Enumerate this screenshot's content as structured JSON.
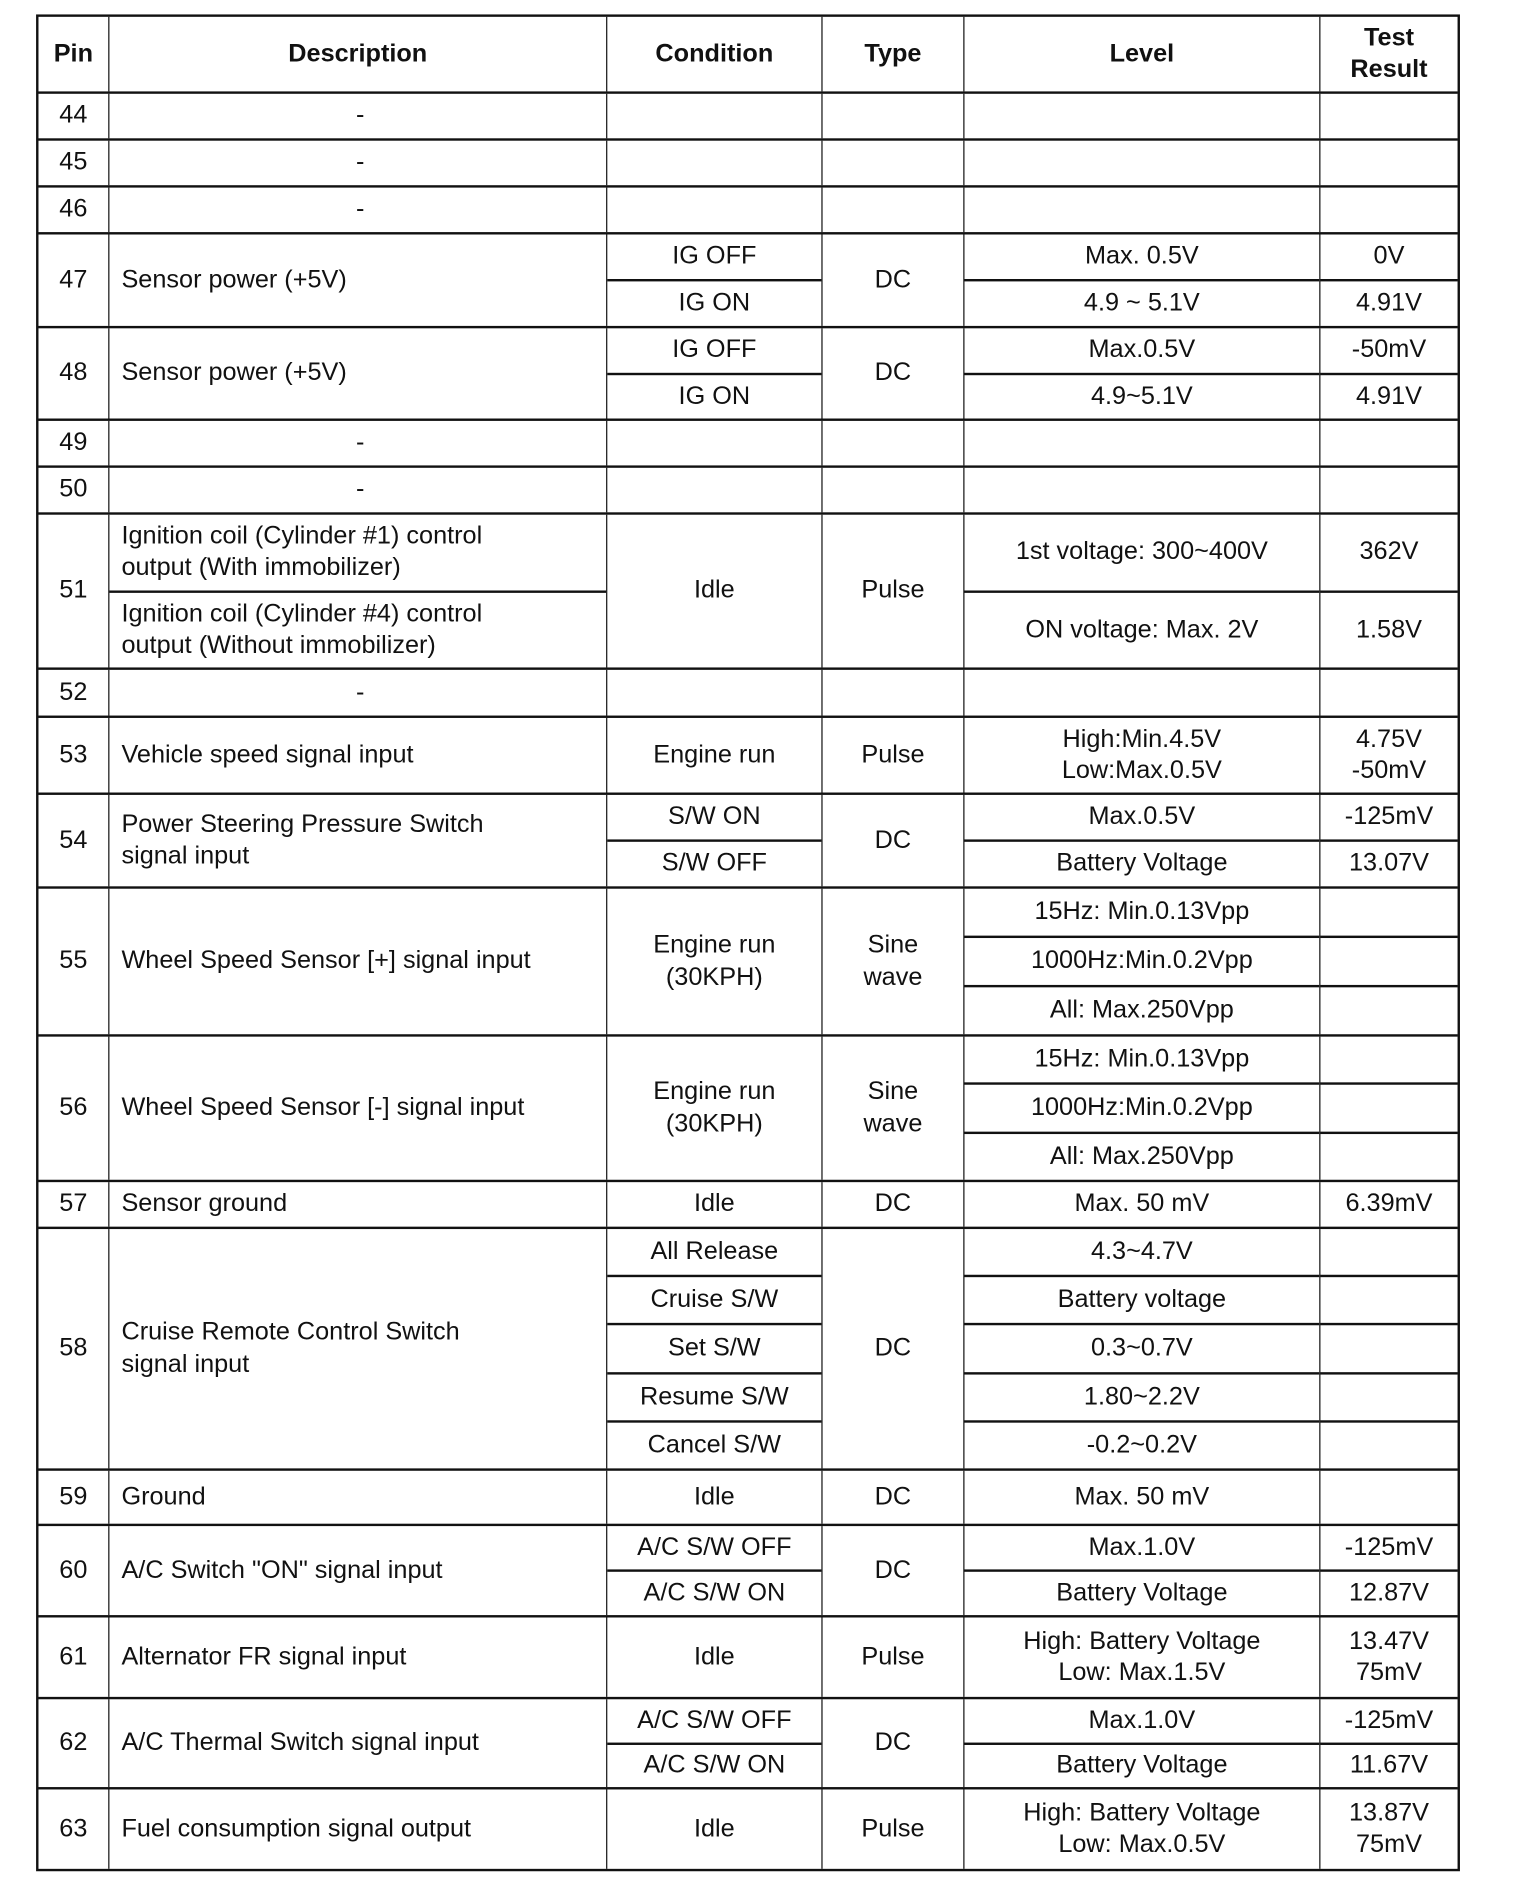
{
  "header": {
    "pin": "Pin",
    "description": "Description",
    "condition": "Condition",
    "type": "Type",
    "level": "Level",
    "result": "Test\nResult"
  },
  "rows": [
    {
      "pin": "44",
      "desc": [
        "-"
      ],
      "cond": [
        ""
      ],
      "type": "",
      "level": [
        ""
      ],
      "result": [
        ""
      ]
    },
    {
      "pin": "45",
      "desc": [
        "-"
      ],
      "cond": [
        ""
      ],
      "type": "",
      "level": [
        ""
      ],
      "result": [
        ""
      ]
    },
    {
      "pin": "46",
      "desc": [
        "-"
      ],
      "cond": [
        ""
      ],
      "type": "",
      "level": [
        ""
      ],
      "result": [
        ""
      ]
    },
    {
      "pin": "47",
      "desc": [
        "Sensor power (+5V)"
      ],
      "cond": [
        "IG OFF",
        "IG ON"
      ],
      "type": "DC",
      "level": [
        "Max.  0.5V",
        "4.9 ~ 5.1V"
      ],
      "result": [
        "0V",
        "4.91V"
      ]
    },
    {
      "pin": "48",
      "desc": [
        "Sensor power (+5V)"
      ],
      "cond": [
        "IG OFF",
        "IG ON"
      ],
      "type": "DC",
      "level": [
        "Max.0.5V",
        "4.9~5.1V"
      ],
      "result": [
        "-50mV",
        "4.91V"
      ]
    },
    {
      "pin": "49",
      "desc": [
        "-"
      ],
      "cond": [
        ""
      ],
      "type": "",
      "level": [
        ""
      ],
      "result": [
        ""
      ]
    },
    {
      "pin": "50",
      "desc": [
        "-"
      ],
      "cond": [
        ""
      ],
      "type": "",
      "level": [
        ""
      ],
      "result": [
        ""
      ]
    },
    {
      "pin": "51",
      "desc": [
        "Ignition coil (Cylinder #1) control\noutput (With immobilizer)",
        "Ignition coil (Cylinder #4) control\noutput (Without immobilizer)"
      ],
      "cond": [
        "Idle"
      ],
      "type": "Pulse",
      "level": [
        "1st voltage: 300~400V",
        "ON voltage: Max. 2V"
      ],
      "result": [
        "362V",
        "1.58V"
      ]
    },
    {
      "pin": "52",
      "desc": [
        "-"
      ],
      "cond": [
        ""
      ],
      "type": "",
      "level": [
        ""
      ],
      "result": [
        ""
      ]
    },
    {
      "pin": "53",
      "desc": [
        "Vehicle speed signal input"
      ],
      "cond": [
        "Engine run"
      ],
      "type": "Pulse",
      "level": [
        "High:Min.4.5V\nLow:Max.0.5V"
      ],
      "result": [
        "4.75V\n-50mV"
      ]
    },
    {
      "pin": "54",
      "desc": [
        "Power Steering Pressure Switch\nsignal input"
      ],
      "cond": [
        "S/W ON",
        "S/W OFF"
      ],
      "type": "DC",
      "level": [
        "Max.0.5V",
        "Battery Voltage"
      ],
      "result": [
        "-125mV",
        "13.07V"
      ]
    },
    {
      "pin": "55",
      "desc": [
        "Wheel Speed Sensor [+] signal input"
      ],
      "cond": [
        "Engine run\n(30KPH)"
      ],
      "type": "Sine\nwave",
      "level": [
        "15Hz:  Min.0.13Vpp",
        "1000Hz:Min.0.2Vpp",
        "All:  Max.250Vpp"
      ],
      "result": [
        "",
        "",
        ""
      ]
    },
    {
      "pin": "56",
      "desc": [
        "Wheel Speed Sensor [-] signal input"
      ],
      "cond": [
        "Engine run\n(30KPH)"
      ],
      "type": "Sine\nwave",
      "level": [
        "15Hz:  Min.0.13Vpp",
        "1000Hz:Min.0.2Vpp",
        "All:  Max.250Vpp"
      ],
      "result": [
        "",
        "",
        ""
      ]
    },
    {
      "pin": "57",
      "desc": [
        "Sensor ground"
      ],
      "cond": [
        "Idle"
      ],
      "type": "DC",
      "level": [
        "Max.  50 mV"
      ],
      "result": [
        "6.39mV"
      ]
    },
    {
      "pin": "58",
      "desc": [
        "Cruise Remote Control Switch\nsignal input"
      ],
      "cond": [
        "All Release",
        "Cruise S/W",
        "Set S/W",
        "Resume S/W",
        "Cancel S/W"
      ],
      "type": "DC",
      "level": [
        "4.3~4.7V",
        "Battery voltage",
        "0.3~0.7V",
        "1.80~2.2V",
        "-0.2~0.2V"
      ],
      "result": [
        "",
        "",
        "",
        "",
        ""
      ]
    },
    {
      "pin": "59",
      "desc": [
        "Ground"
      ],
      "cond": [
        "Idle"
      ],
      "type": "DC",
      "level": [
        "Max.  50 mV"
      ],
      "result": [
        ""
      ]
    },
    {
      "pin": "60",
      "desc": [
        "A/C Switch \"ON\" signal input"
      ],
      "cond": [
        "A/C S/W OFF",
        "A/C S/W ON"
      ],
      "type": "DC",
      "level": [
        "Max.1.0V",
        "Battery Voltage"
      ],
      "result": [
        "-125mV",
        "12.87V"
      ]
    },
    {
      "pin": "61",
      "desc": [
        "Alternator FR signal input"
      ],
      "cond": [
        "Idle"
      ],
      "type": "Pulse",
      "level": [
        "High:  Battery Voltage\nLow:  Max.1.5V"
      ],
      "result": [
        "13.47V\n75mV"
      ]
    },
    {
      "pin": "62",
      "desc": [
        "A/C Thermal Switch signal input"
      ],
      "cond": [
        "A/C S/W OFF",
        "A/C S/W ON"
      ],
      "type": "DC",
      "level": [
        "Max.1.0V",
        "Battery Voltage"
      ],
      "result": [
        "-125mV",
        "11.67V"
      ]
    },
    {
      "pin": "63",
      "desc": [
        "Fuel consumption signal output"
      ],
      "cond": [
        "Idle"
      ],
      "type": "Pulse",
      "level": [
        "High:  Battery Voltage\nLow:  Max.0.5V"
      ],
      "result": [
        "13.87V\n75mV"
      ]
    }
  ]
}
